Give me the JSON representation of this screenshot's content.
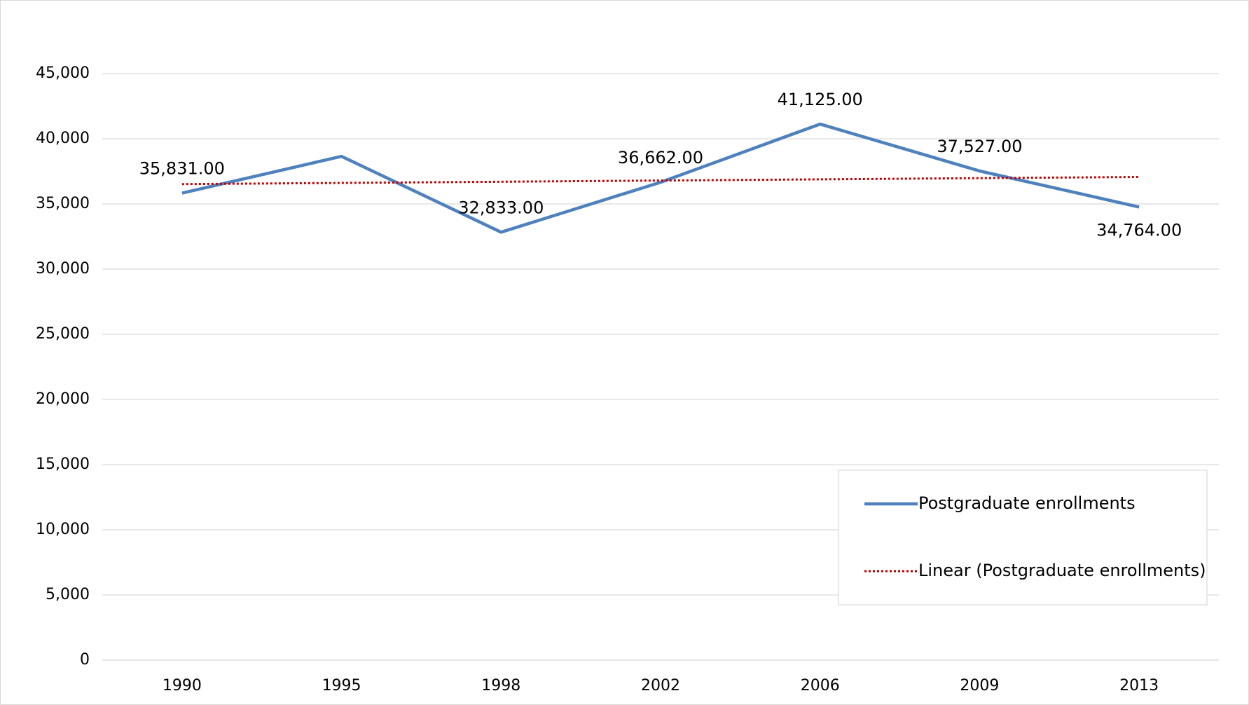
{
  "chart_data": {
    "type": "line",
    "categories": [
      "1990",
      "1995",
      "1998",
      "2002",
      "2006",
      "2009",
      "2013"
    ],
    "series": [
      {
        "name": "Postgraduate enrollments",
        "color": "#4f81bd",
        "values": [
          35831,
          38650,
          32833,
          36662,
          41125,
          37527,
          34764
        ],
        "value_labels": [
          "35,831.00",
          null,
          "32,833.00",
          "36,662.00",
          "41,125.00",
          "37,527.00",
          "34,764.00"
        ]
      },
      {
        "name": "Linear (Postgraduate enrollments)",
        "color": "#c00000",
        "dash": "dotted",
        "values": [
          36520,
          36612,
          36703,
          36795,
          36887,
          36978,
          37070
        ]
      }
    ],
    "ylim": [
      0,
      45000
    ],
    "yticks": [
      0,
      {
        "value": 5000,
        "label": "5,000"
      },
      {
        "value": 10000,
        "label": "10,000"
      },
      {
        "value": 15000,
        "label": "15,000"
      },
      {
        "value": 20000,
        "label": "20,000"
      },
      {
        "value": 25000,
        "label": "25,000"
      },
      {
        "value": 30000,
        "label": "30,000"
      },
      {
        "value": 35000,
        "label": "35,000"
      },
      {
        "value": 40000,
        "label": "40,000"
      },
      {
        "value": 45000,
        "label": "45,000"
      }
    ],
    "grid": true,
    "legend": "lower right"
  }
}
